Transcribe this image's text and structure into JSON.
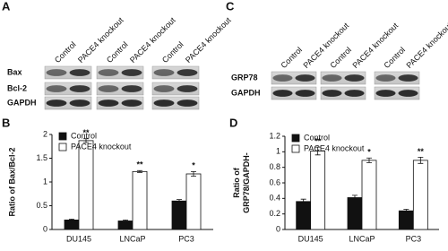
{
  "blots": [
    {
      "label": "A",
      "lanes": [
        "Control",
        "PACE4 knockout"
      ],
      "rows": [
        "Bax",
        "Bcl-2",
        "GAPDH"
      ]
    },
    {
      "label": "C",
      "lanes": [
        "Control",
        "PACE4 knockout"
      ],
      "rows": [
        "GRP78",
        "GAPDH"
      ]
    }
  ],
  "chart_data": [
    {
      "type": "bar",
      "label": "B",
      "ylabel": [
        "Ratio of Bax/Bcl-2"
      ],
      "categories": [
        "DU145",
        "LNCaP",
        "PC3"
      ],
      "series": [
        {
          "name": "Control",
          "color": "#111111",
          "values": [
            0.2,
            0.18,
            0.6
          ],
          "errors": [
            0.02,
            0.02,
            0.03
          ]
        },
        {
          "name": "PACE4 knockout",
          "color": "#ffffff",
          "values": [
            1.87,
            1.22,
            1.17
          ],
          "errors": [
            0.04,
            0.02,
            0.05
          ]
        }
      ],
      "annotations": [
        "**",
        "**",
        "*"
      ],
      "ylim": [
        0,
        2
      ],
      "yticks": [
        0,
        0.5,
        1,
        1.5,
        2
      ],
      "legend": "upper left"
    },
    {
      "type": "bar",
      "label": "D",
      "ylabel": [
        "Ratio of",
        "GRP78/GAPDH-"
      ],
      "categories": [
        "DU145",
        "LNCaP",
        "PC3"
      ],
      "series": [
        {
          "name": "Control",
          "color": "#111111",
          "values": [
            0.36,
            0.41,
            0.24
          ],
          "errors": [
            0.03,
            0.03,
            0.02
          ]
        },
        {
          "name": "PACE4 knockout",
          "color": "#ffffff",
          "values": [
            1.01,
            0.89,
            0.89
          ],
          "errors": [
            0.05,
            0.03,
            0.04
          ]
        }
      ],
      "annotations": [
        "**",
        "*",
        "**"
      ],
      "ylim": [
        0,
        1.2
      ],
      "yticks": [
        0,
        0.2,
        0.4,
        0.6,
        0.8,
        1,
        1.2
      ],
      "legend": "upper left"
    }
  ]
}
